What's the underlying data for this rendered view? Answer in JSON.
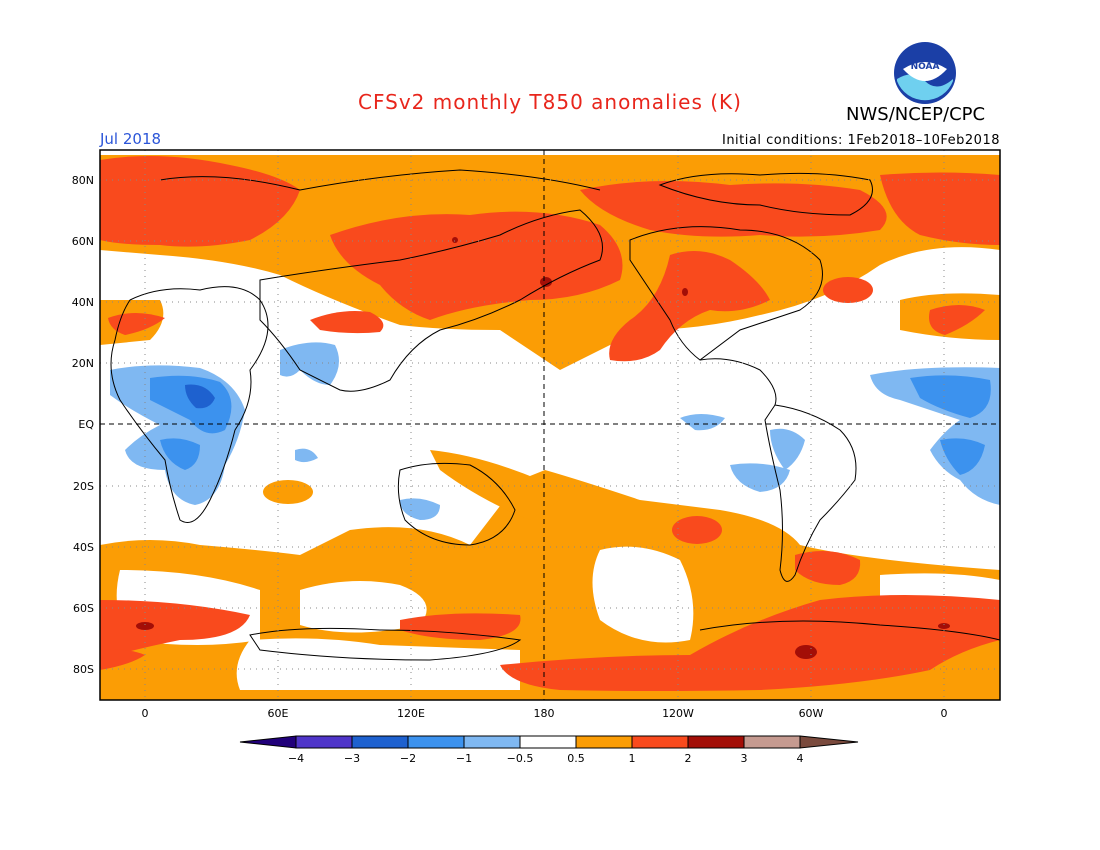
{
  "header": {
    "title": "CFSv2 monthly T850 anomalies (K)",
    "org": "NWS/NCEP/CPC",
    "month": "Jul 2018",
    "initial_conditions": "Initial conditions: 1Feb2018–10Feb2018",
    "logo_text": "NOAA"
  },
  "colors": {
    "title": "#e8261c",
    "month": "#2b55d8",
    "neg_lt4": "#21007a",
    "neg4_3": "#4f35c9",
    "neg3_2": "#1e61cf",
    "neg2_1": "#3c92ee",
    "neg1_05": "#7fb8f2",
    "neutral": "#ffffff",
    "pos05_1": "#fb9d05",
    "pos1_2": "#f94a1d",
    "pos2_3": "#a30e07",
    "pos3_4": "#c59a90",
    "pos_gt4": "#7a4a3d"
  },
  "map": {
    "lat_labels": [
      "80N",
      "60N",
      "40N",
      "20N",
      "EQ",
      "20S",
      "40S",
      "60S",
      "80S"
    ],
    "lon_labels": [
      "0",
      "60E",
      "120E",
      "180",
      "120W",
      "60W",
      "0"
    ],
    "grid": true
  },
  "colorbar": {
    "tick_labels": [
      "−4",
      "−3",
      "−2",
      "−1",
      "−0.5",
      "0.5",
      "1",
      "2",
      "3",
      "4"
    ]
  }
}
